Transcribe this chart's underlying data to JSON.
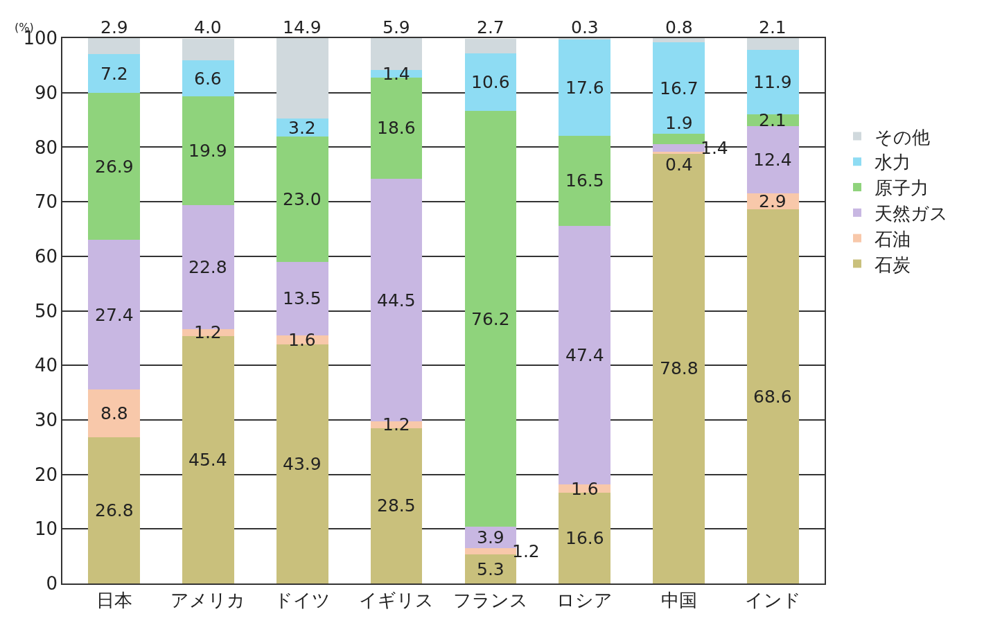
{
  "chart_data": {
    "type": "bar",
    "stacked": true,
    "ylabel": "(%)",
    "categories": [
      "日本",
      "アメリカ",
      "ドイツ",
      "イギリス",
      "フランス",
      "ロシア",
      "中国",
      "インド"
    ],
    "series": [
      {
        "name": "石炭",
        "color": "#c9c07c",
        "values": [
          26.8,
          45.4,
          43.9,
          28.5,
          5.3,
          16.6,
          78.8,
          68.6
        ],
        "value_labels": [
          "26.8",
          "45.4",
          "43.9",
          "28.5",
          "5.3",
          "16.6",
          "78.8",
          "68.6"
        ]
      },
      {
        "name": "石油",
        "color": "#f8c8aa",
        "values": [
          8.8,
          1.2,
          1.6,
          1.2,
          1.2,
          1.6,
          0.4,
          2.9
        ],
        "value_labels": [
          "8.8",
          "1.2",
          "1.6",
          "1.2",
          "1.2",
          "1.6",
          "0.4",
          "2.9"
        ]
      },
      {
        "name": "天然ガス",
        "color": "#c8b7e2",
        "values": [
          27.4,
          22.8,
          13.5,
          44.5,
          3.9,
          47.4,
          1.4,
          12.4
        ],
        "value_labels": [
          "27.4",
          "22.8",
          "13.5",
          "44.5",
          "3.9",
          "47.4",
          "1.4",
          "12.4"
        ]
      },
      {
        "name": "原子力",
        "color": "#8fd37c",
        "values": [
          26.9,
          19.9,
          23.0,
          18.6,
          76.2,
          16.5,
          1.9,
          2.1
        ],
        "value_labels": [
          "26.9",
          "19.9",
          "23.0",
          "18.6",
          "76.2",
          "16.5",
          "1.9",
          "2.1"
        ]
      },
      {
        "name": "水力",
        "color": "#8edcf3",
        "values": [
          7.2,
          6.6,
          3.2,
          1.4,
          10.6,
          17.6,
          16.7,
          11.9
        ],
        "value_labels": [
          "7.2",
          "6.6",
          "3.2",
          "1.4",
          "10.6",
          "17.6",
          "16.7",
          "11.9"
        ]
      },
      {
        "name": "その他",
        "color": "#d0d9dd",
        "values": [
          2.9,
          4.0,
          14.9,
          5.9,
          2.7,
          0.3,
          0.8,
          2.1
        ],
        "value_labels": [
          "2.9",
          "4.0",
          "14.9",
          "5.9",
          "2.7",
          "0.3",
          "0.8",
          "2.1"
        ]
      }
    ],
    "ylim": [
      0,
      100
    ],
    "yticks": [
      0,
      10,
      20,
      30,
      40,
      50,
      60,
      70,
      80,
      90,
      100
    ],
    "grid": "y",
    "legend": "right"
  }
}
